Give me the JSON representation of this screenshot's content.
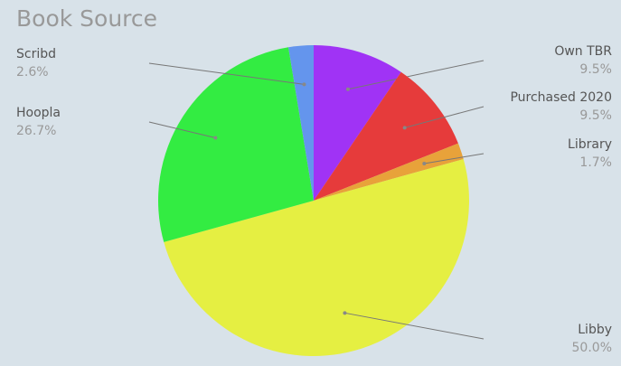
{
  "chart_data": {
    "type": "pie",
    "title": "Book Source",
    "categories": [
      "Own TBR",
      "Purchased 2020",
      "Library",
      "Libby",
      "Hoopla",
      "Scribd"
    ],
    "values": [
      9.5,
      9.5,
      1.7,
      50.0,
      26.7,
      2.6
    ],
    "value_labels": [
      "9.5%",
      "9.5%",
      "1.7%",
      "50.0%",
      "26.7%",
      "2.6%"
    ],
    "colors": [
      "#a033f5",
      "#e63b3b",
      "#e8a23a",
      "#e5ef42",
      "#33ec42",
      "#6495ed"
    ]
  }
}
